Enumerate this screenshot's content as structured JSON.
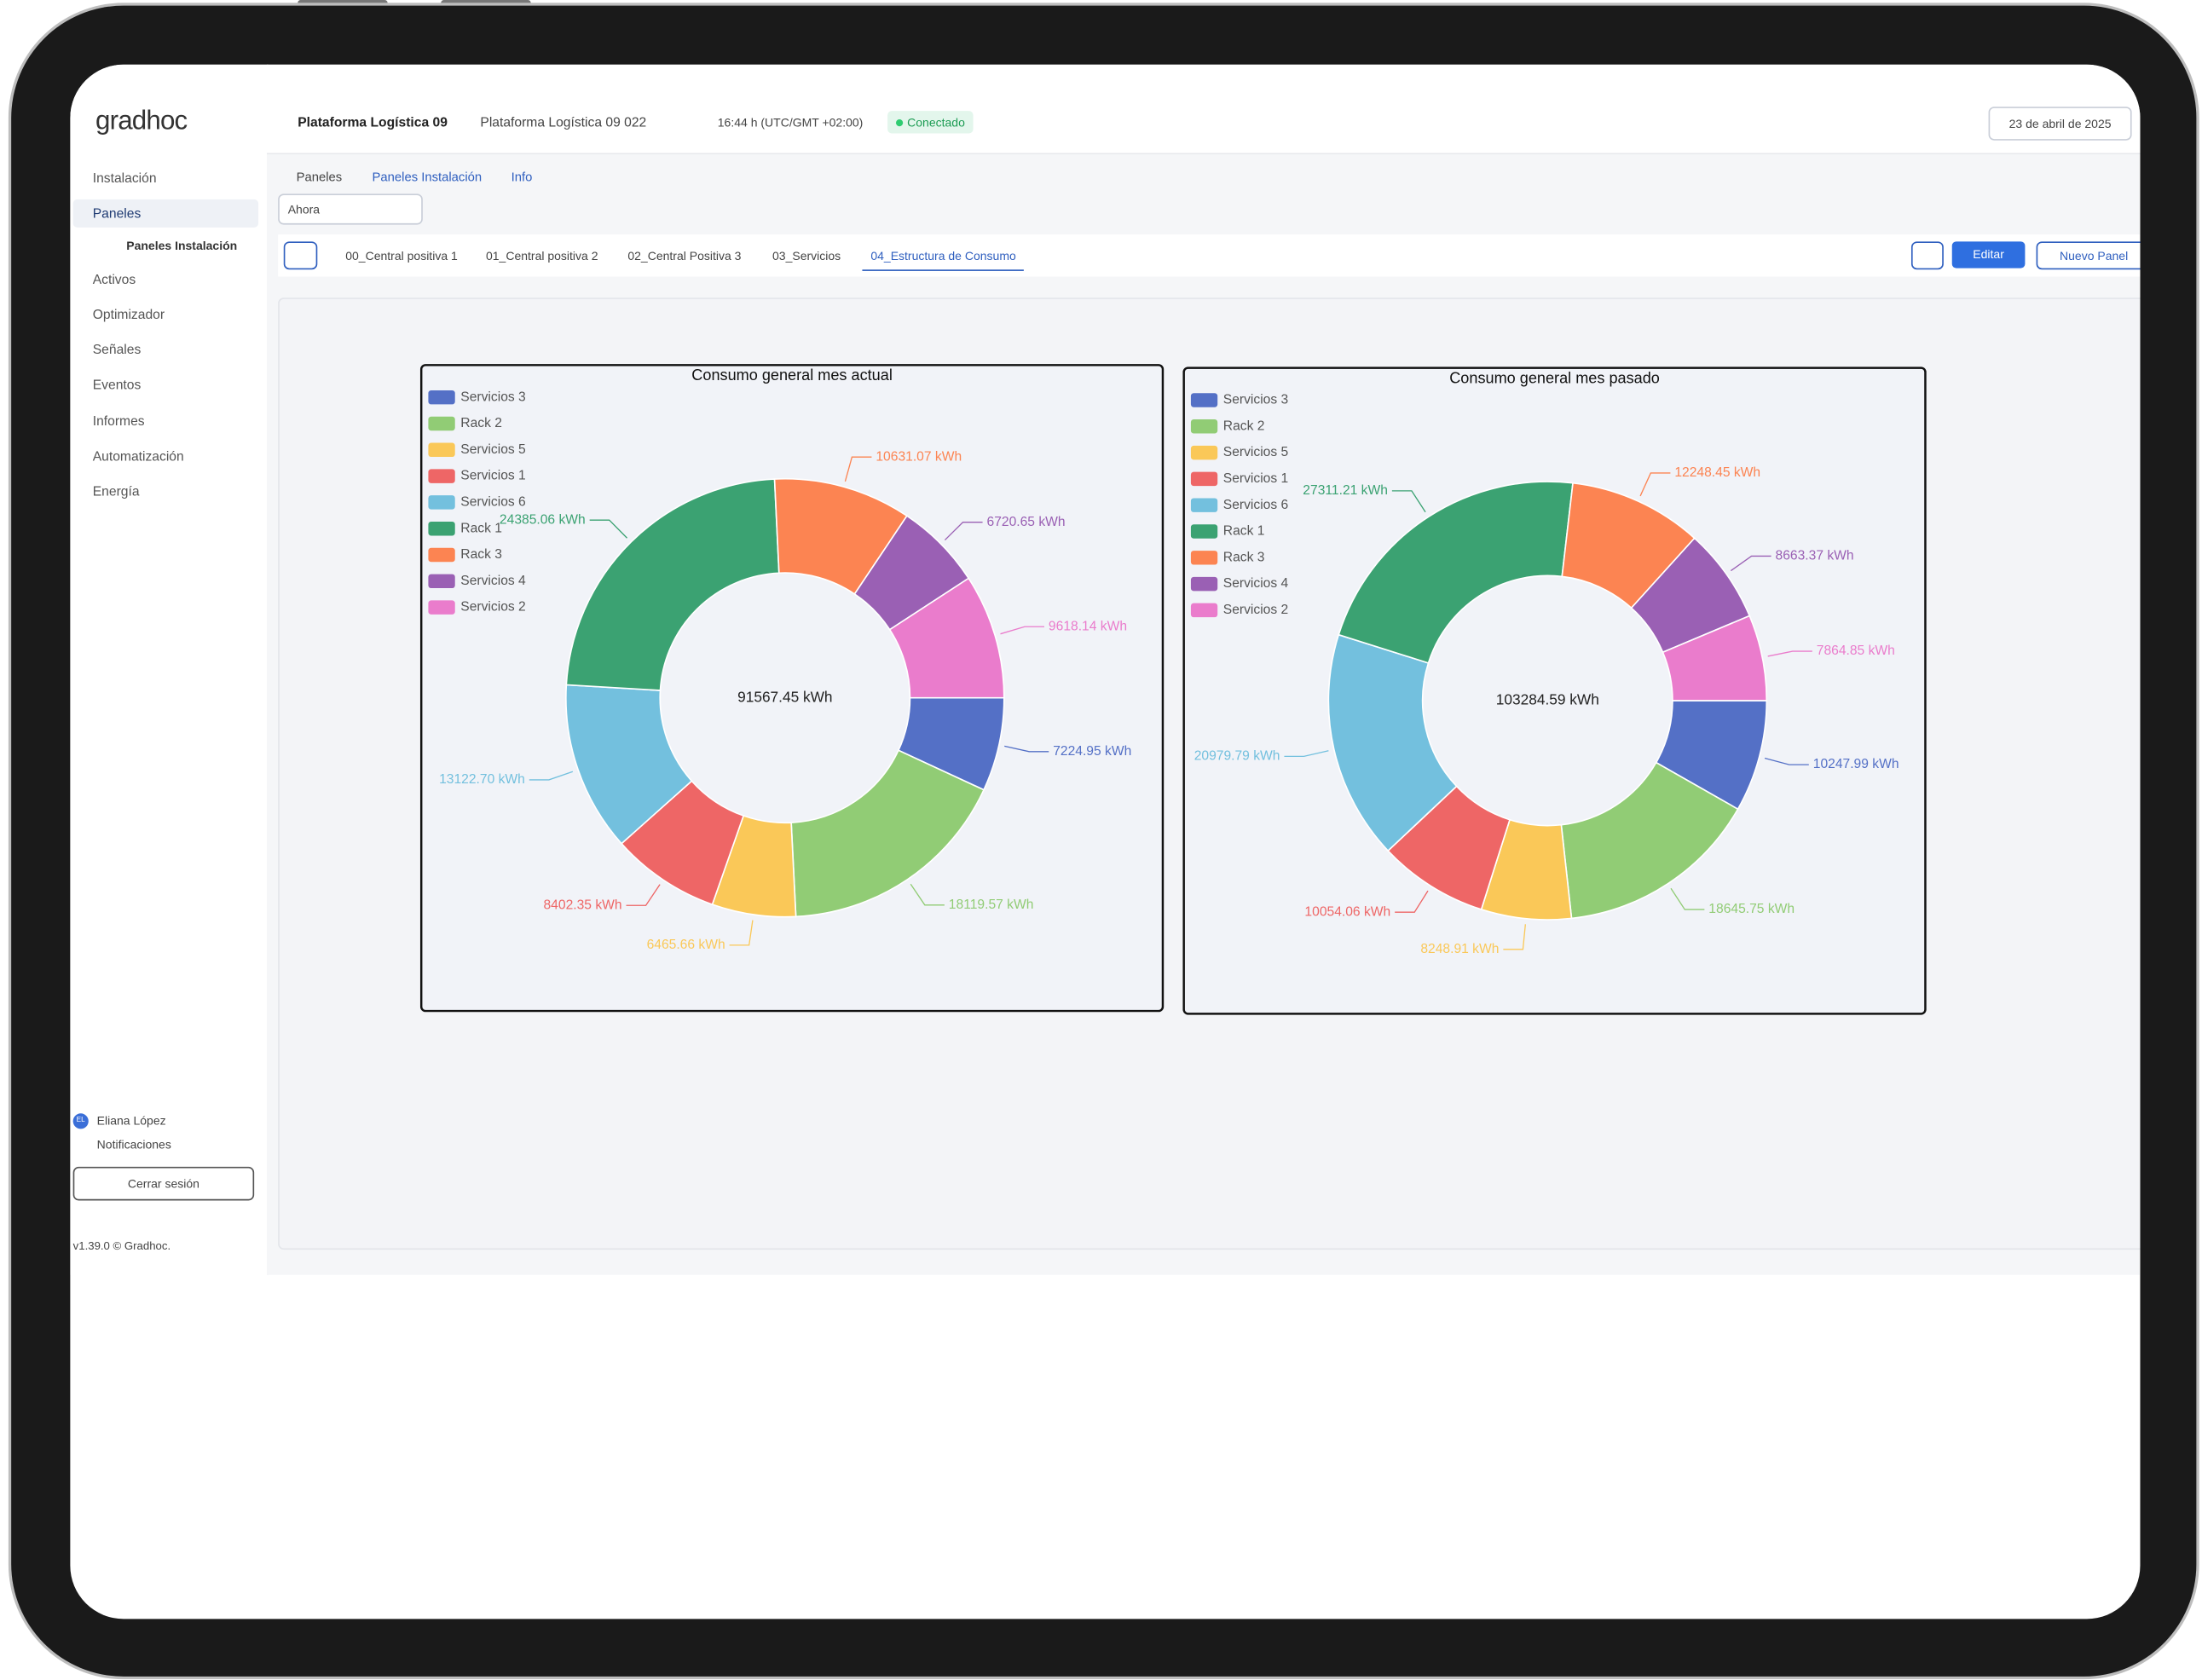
{
  "header": {
    "logo": "gradhoc",
    "site": "Plataforma Logística 09",
    "installation": "Plataforma Logística 09 022",
    "time": "16:44 h (UTC/GMT +02:00)",
    "status": "Conectado",
    "date": "23 de abril de 2025"
  },
  "sidebar": {
    "menu": [
      "Instalación",
      "Paneles",
      "Activos",
      "Optimizador",
      "Señales",
      "Eventos",
      "Informes",
      "Automatización",
      "Energía"
    ],
    "submenu": "Paneles Instalación",
    "user_initials": "EL",
    "user": "Eliana López",
    "notifications": "Notificaciones",
    "logout": "Cerrar sesión",
    "version": "v1.39.0 © Gradhoc."
  },
  "breadcrumbs": [
    "Paneles",
    "Paneles Instalación",
    "Info"
  ],
  "time_select": "Ahora",
  "tabs": [
    "00_Central positiva 1",
    "01_Central positiva 2",
    "02_Central Positiva 3",
    "03_Servicios",
    "04_Estructura de Consumo"
  ],
  "buttons": {
    "edit": "Editar",
    "new_panel": "Nuevo Panel"
  },
  "chart_data": [
    {
      "type": "pie",
      "donut": true,
      "title": "Consumo general mes actual",
      "center_label": "91567.45 kWh",
      "legend": "top-left",
      "categories": [
        "Servicios 3",
        "Rack 2",
        "Servicios 5",
        "Servicios 1",
        "Servicios 6",
        "Rack 1",
        "Rack 3",
        "Servicios 4",
        "Servicios 2"
      ],
      "values": [
        7224.95,
        18119.57,
        6465.66,
        8402.35,
        13122.7,
        24385.06,
        10631.07,
        6720.65,
        9618.14
      ],
      "value_labels": [
        "7224.95 kWh",
        "18119.57 kWh",
        "6465.66 kWh",
        "8402.35 kWh",
        "13122.70 kWh",
        "24385.06 kWh",
        "10631.07 kWh",
        "6720.65 kWh",
        "9618.14 kWh"
      ],
      "colors": [
        "#5470c6",
        "#91cc75",
        "#fac858",
        "#ee6666",
        "#73c0de",
        "#3ba272",
        "#fc8452",
        "#9a60b4",
        "#ea7ccc"
      ]
    },
    {
      "type": "pie",
      "donut": true,
      "title": "Consumo general mes pasado",
      "center_label": "103284.59 kWh",
      "legend": "top-left",
      "categories": [
        "Servicios 3",
        "Rack 2",
        "Servicios 5",
        "Servicios 1",
        "Servicios 6",
        "Rack 1",
        "Rack 3",
        "Servicios 4",
        "Servicios 2"
      ],
      "values": [
        10247.99,
        18645.75,
        8248.91,
        10054.06,
        20979.79,
        27311.21,
        12248.45,
        8663.37,
        7864.85
      ],
      "value_labels": [
        "10247.99 kWh",
        "18645.75 kWh",
        "8248.91 kWh",
        "10054.06 kWh",
        "20979.79 kWh",
        "27311.21 kWh",
        "12248.45 kWh",
        "8663.37 kWh",
        "7864.85 kWh"
      ],
      "colors": [
        "#5470c6",
        "#91cc75",
        "#fac858",
        "#ee6666",
        "#73c0de",
        "#3ba272",
        "#fc8452",
        "#9a60b4",
        "#ea7ccc"
      ]
    }
  ]
}
